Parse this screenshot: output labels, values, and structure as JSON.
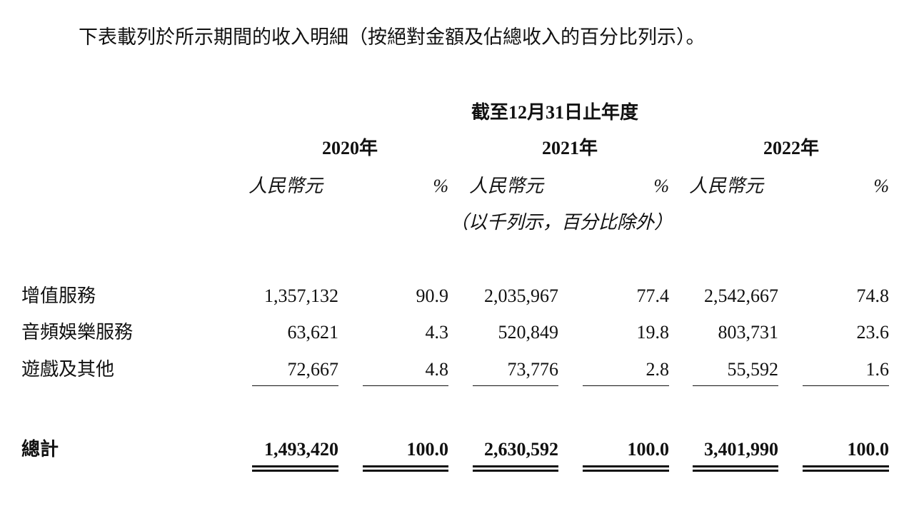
{
  "intro": "下表載列於所示期間的收入明細（按絕對金額及佔總收入的百分比列示）。",
  "table": {
    "period_header": "截至12月31日止年度",
    "years": [
      "2020年",
      "2021年",
      "2022年"
    ],
    "unit_rmb": "人民幣元",
    "unit_pct": "%",
    "note": "（以千列示，百分比除外）",
    "rows": [
      {
        "label": "增值服務",
        "values": [
          "1,357,132",
          "90.9",
          "2,035,967",
          "77.4",
          "2,542,667",
          "74.8"
        ]
      },
      {
        "label": "音頻娛樂服務",
        "values": [
          "63,621",
          "4.3",
          "520,849",
          "19.8",
          "803,731",
          "23.6"
        ]
      },
      {
        "label": "遊戲及其他",
        "values": [
          "72,667",
          "4.8",
          "73,776",
          "2.8",
          "55,592",
          "1.6"
        ]
      }
    ],
    "total": {
      "label": "總計",
      "values": [
        "1,493,420",
        "100.0",
        "2,630,592",
        "100.0",
        "3,401,990",
        "100.0"
      ]
    }
  }
}
